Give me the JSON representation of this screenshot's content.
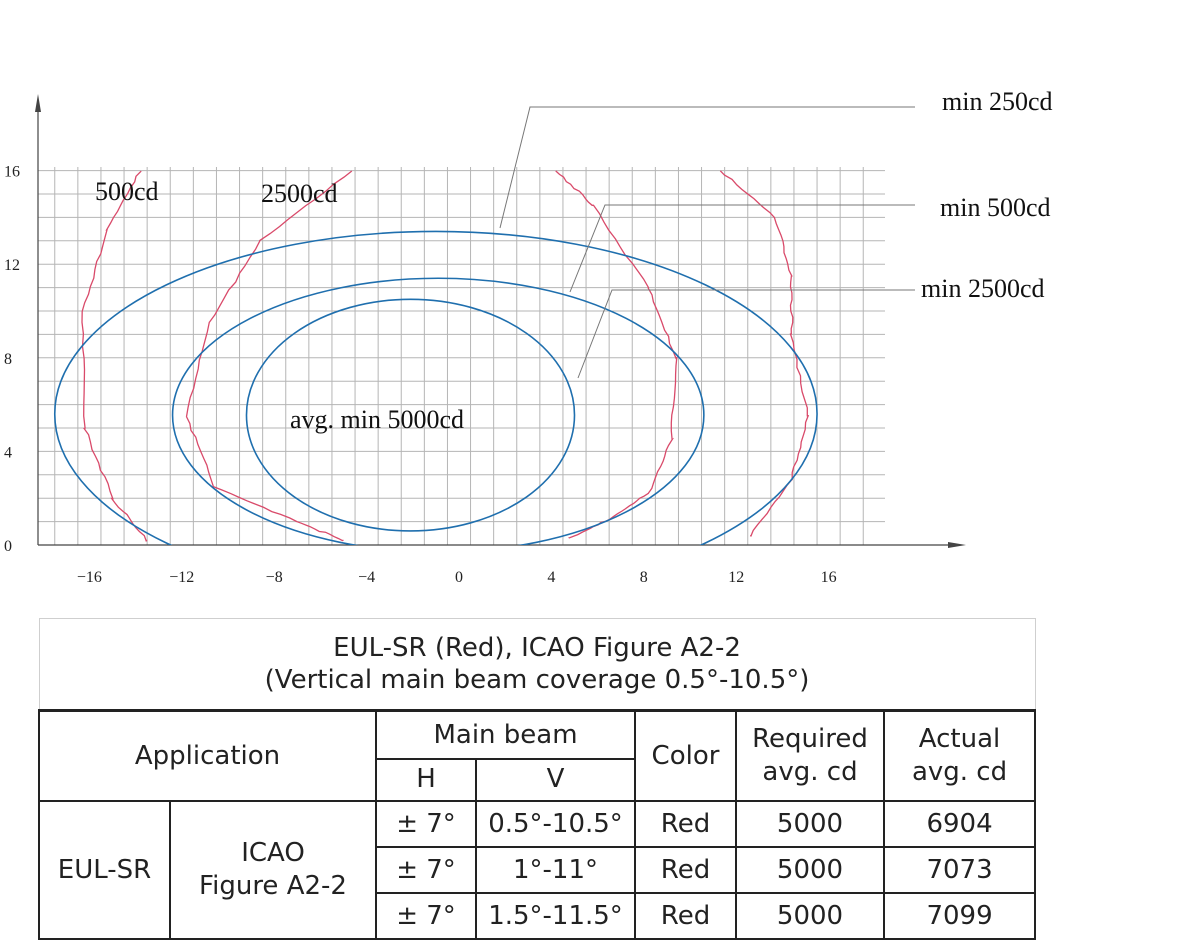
{
  "chart_data": {
    "type": "line",
    "xlim": [
      -17.5,
      19
    ],
    "ylim": [
      0,
      16
    ],
    "x_ticks": [
      "−16",
      "−12",
      "−8",
      "−4",
      "0",
      "4",
      "8",
      "12",
      "16"
    ],
    "y_ticks": [
      "0",
      "4",
      "8",
      "12",
      "16"
    ],
    "grid": true,
    "ellipses": [
      {
        "label": "min 250cd",
        "x_range": [
          -17.5,
          15.5
        ],
        "y_range": [
          -2.2,
          13.4
        ]
      },
      {
        "label": "min 500cd",
        "x_range": [
          -12.4,
          10.6
        ],
        "y_range": [
          -0.3,
          11.4
        ]
      },
      {
        "label": "min 2500cd",
        "x_range": [
          -9.2,
          5
        ],
        "y_range": [
          0.6,
          10.5
        ]
      }
    ],
    "ellipse_center_label": "avg. min 5000cd",
    "isocandela_curves": [
      {
        "label": "500cd",
        "points": [
          [
            -13.8,
            16
          ],
          [
            -15.2,
            13.5
          ],
          [
            -16.3,
            10
          ],
          [
            -16.2,
            5
          ],
          [
            -15,
            2
          ],
          [
            -13.5,
            0.2
          ]
        ]
      },
      {
        "label": "2500cd",
        "points": [
          [
            -4.6,
            16
          ],
          [
            -8.6,
            13
          ],
          [
            -10.8,
            9.5
          ],
          [
            -11.8,
            5.5
          ],
          [
            -10.6,
            2.5
          ],
          [
            -7,
            1
          ],
          [
            -5,
            0.2
          ]
        ]
      },
      {
        "label": "",
        "points": [
          [
            4.2,
            16
          ],
          [
            5.8,
            14.5
          ],
          [
            8.2,
            11
          ],
          [
            9.4,
            8
          ],
          [
            9.2,
            4.5
          ],
          [
            8.2,
            2.2
          ],
          [
            6.5,
            1.1
          ],
          [
            4.8,
            0.3
          ]
        ]
      },
      {
        "label": "",
        "points": [
          [
            11.3,
            16
          ],
          [
            13.7,
            14
          ],
          [
            14.4,
            11.5
          ],
          [
            14.4,
            9
          ],
          [
            15.1,
            5.5
          ],
          [
            14.4,
            2.8
          ],
          [
            12.6,
            0.4
          ]
        ]
      }
    ],
    "colors": {
      "ellipse": "#1f6fae",
      "curve": "#d94a6a",
      "grid": "#b5b5b5"
    }
  },
  "table": {
    "title_line1": "EUL-SR (Red), ICAO Figure A2-2",
    "title_line2": "(Vertical main beam coverage 0.5°-10.5°)",
    "headers": {
      "application": "Application",
      "main_beam": "Main beam",
      "h": "H",
      "v": "V",
      "color": "Color",
      "required_line1": "Required",
      "required_line2": "avg. cd",
      "actual_line1": "Actual",
      "actual_line2": "avg. cd"
    },
    "group_label": "EUL-SR",
    "sub_label_line1": "ICAO",
    "sub_label_line2": "Figure A2-2",
    "rows": [
      {
        "h": "± 7°",
        "v": "0.5°-10.5°",
        "color": "Red",
        "required": "5000",
        "actual": "6904"
      },
      {
        "h": "± 7°",
        "v": "1°-11°",
        "color": "Red",
        "required": "5000",
        "actual": "7073"
      },
      {
        "h": "± 7°",
        "v": "1.5°-11.5°",
        "color": "Red",
        "required": "5000",
        "actual": "7099"
      }
    ]
  }
}
